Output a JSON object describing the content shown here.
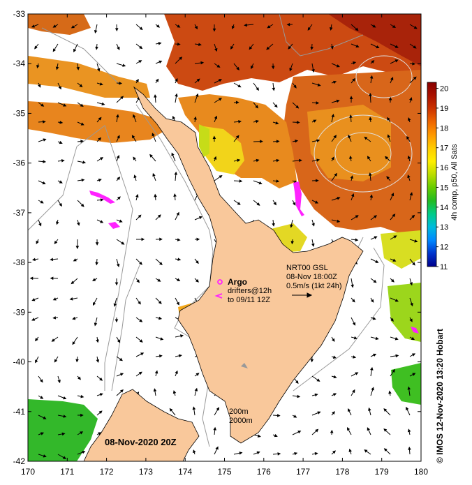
{
  "map": {
    "lon_ticks": [
      "170",
      "171",
      "172",
      "173",
      "174",
      "175",
      "176",
      "177",
      "178",
      "179",
      "180"
    ],
    "lat_ticks": [
      "-33",
      "-34",
      "-35",
      "-36",
      "-37",
      "-38",
      "-39",
      "-40",
      "-41",
      "-42"
    ],
    "lon_range": [
      170,
      180
    ],
    "lat_range": [
      -42,
      -33
    ]
  },
  "colorbar": {
    "title": "4h comp, p50, All Sats",
    "ticks": [
      "20",
      "19",
      "18",
      "17",
      "16",
      "15",
      "14",
      "13",
      "12",
      "11"
    ],
    "range": [
      11,
      20.3
    ],
    "colors": [
      "#00008b",
      "#0033cc",
      "#0088ff",
      "#00bbdd",
      "#00cc88",
      "#22bb22",
      "#66cc00",
      "#bbdd00",
      "#ffee00",
      "#ffcc00",
      "#ff9900",
      "#ee6600",
      "#cc3300",
      "#aa1100",
      "#880000"
    ]
  },
  "annotations": {
    "argo": "Argo",
    "drifters_line1": "drifters@12h",
    "drifters_line2": "to 09/11 12Z",
    "current_src": "NRT00 GSL",
    "current_time": "08-Nov 18:00Z",
    "current_scale": "0.5m/s (1kt 24h)",
    "depth1": "200m",
    "depth2": "2000m",
    "date": "08-Nov-2020 20Z",
    "credit": "© IMOS 12-Nov-2020 13:20 Hobart"
  },
  "colors": {
    "land": "#f9c89b",
    "coast": "#000000",
    "contour": "#999999",
    "drifter": "#ff22ff"
  }
}
